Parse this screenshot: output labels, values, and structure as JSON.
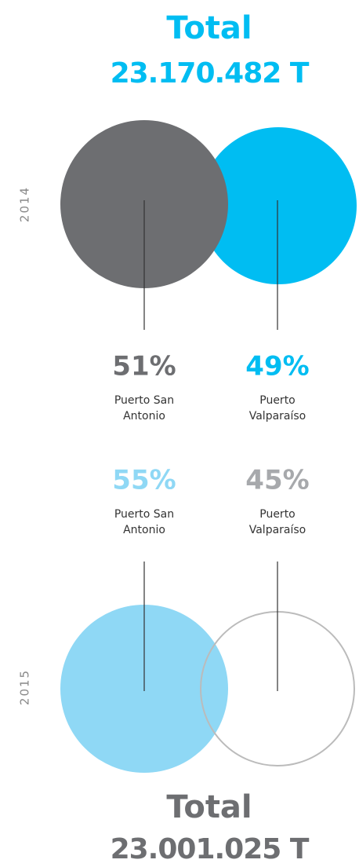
{
  "top": {
    "title": "Total",
    "total": "23.170.482 T",
    "year": "2014",
    "items": [
      {
        "percent": "51%",
        "label": [
          "Puerto San",
          "Antonio"
        ]
      },
      {
        "percent": "49%",
        "label": [
          "Puerto",
          "Valparaíso"
        ]
      }
    ]
  },
  "bottom": {
    "title": "Total",
    "total": "23.001.025 T",
    "year": "2015",
    "items": [
      {
        "percent": "55%",
        "label": [
          "Puerto San",
          "Antonio"
        ]
      },
      {
        "percent": "45%",
        "label": [
          "Puerto",
          "Valparaíso"
        ]
      }
    ]
  }
}
